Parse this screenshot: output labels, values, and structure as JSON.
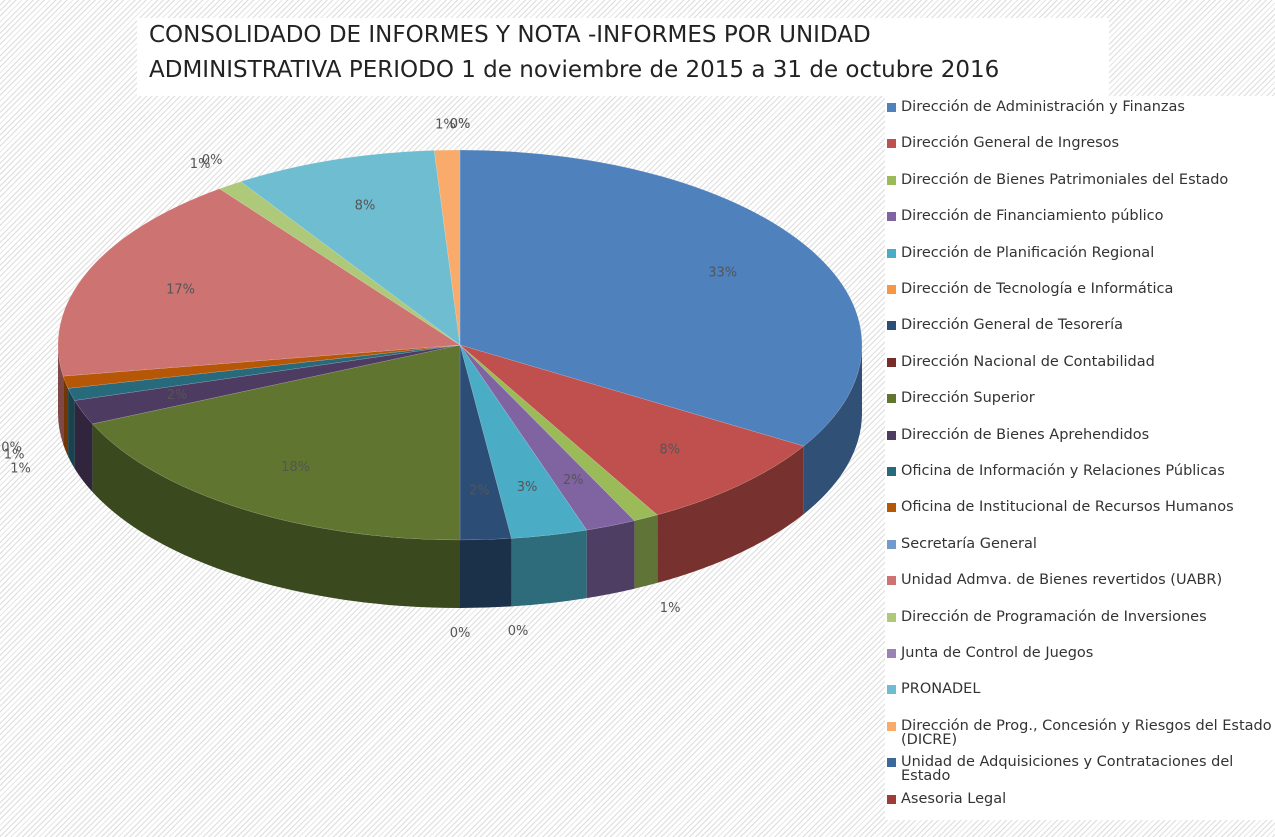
{
  "chart_data": {
    "type": "pie",
    "title": "CONSOLIDADO DE INFORMES Y NOTA -INFORMES POR UNIDAD\nADMINISTRATIVA PERIODO 1 de noviembre de 2015 a 31 de octubre 2016",
    "categories": [
      "Dirección de Administración y Finanzas",
      "Dirección General de Ingresos",
      "Dirección de Bienes Patrimoniales del Estado",
      "Dirección de Financiamiento público",
      "Dirección de Planificación Regional",
      "Dirección de Tecnología e Informática",
      "Dirección General de Tesorería",
      "Dirección Nacional de Contabilidad",
      "Dirección Superior",
      "Dirección de Bienes Aprehendidos",
      "Oficina de Información y Relaciones Públicas",
      "Oficina de Institucional de Recursos Humanos",
      "Secretaría General",
      "Unidad Admva. de Bienes revertidos (UABR)",
      "Dirección de Programación de Inversiones",
      "Junta de Control de Juegos",
      "PRONADEL",
      "Dirección de Prog., Concesión y Riesgos del Estado (DICRE)",
      "Unidad de Adquisiciones y Contrataciones del Estado",
      "Asesoria Legal"
    ],
    "values": [
      33,
      8,
      1,
      2,
      3,
      0,
      2,
      0,
      18,
      2,
      1,
      1,
      0,
      17,
      1,
      0,
      8,
      1,
      0,
      0
    ],
    "value_labels": [
      "33%",
      "8%",
      "1%",
      "2%",
      "3%",
      "0%",
      "2%",
      "0%",
      "18%",
      "2%",
      "1%",
      "1%",
      "0%",
      "17%",
      "1%",
      "0%",
      "8%",
      "1%",
      "0%",
      "0%"
    ],
    "colors": [
      "#4f81bd",
      "#c0504d",
      "#9bbb59",
      "#8064a2",
      "#4bacc6",
      "#f79646",
      "#2c4d75",
      "#772c2a",
      "#5f7530",
      "#4d3b62",
      "#276a7c",
      "#b65708",
      "#729aca",
      "#cd7371",
      "#afc97a",
      "#9983b5",
      "#6fbdd1",
      "#f9ab6b",
      "#3a679c",
      "#9f3b38"
    ],
    "legend": "right"
  }
}
